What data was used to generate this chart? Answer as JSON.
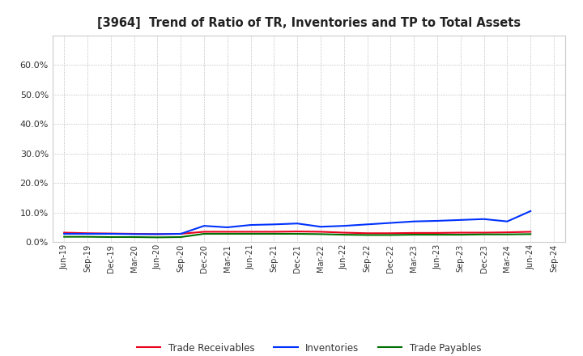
{
  "title": "[3964]  Trend of Ratio of TR, Inventories and TP to Total Assets",
  "x_labels": [
    "Jun-19",
    "Sep-19",
    "Dec-19",
    "Mar-20",
    "Jun-20",
    "Sep-20",
    "Dec-20",
    "Mar-21",
    "Jun-21",
    "Sep-21",
    "Dec-21",
    "Mar-22",
    "Jun-22",
    "Sep-22",
    "Dec-22",
    "Mar-23",
    "Jun-23",
    "Sep-23",
    "Dec-23",
    "Mar-24",
    "Jun-24",
    "Sep-24"
  ],
  "trade_receivables": [
    3.2,
    3.0,
    2.9,
    2.8,
    2.7,
    2.8,
    3.5,
    3.5,
    3.5,
    3.5,
    3.6,
    3.5,
    3.2,
    3.0,
    3.0,
    3.1,
    3.1,
    3.2,
    3.2,
    3.3,
    3.5,
    null
  ],
  "inventories": [
    2.8,
    2.8,
    2.8,
    2.7,
    2.7,
    2.8,
    5.5,
    5.0,
    5.8,
    6.0,
    6.3,
    5.2,
    5.5,
    6.0,
    6.5,
    7.0,
    7.2,
    7.5,
    7.8,
    7.0,
    10.5,
    null
  ],
  "trade_payables": [
    1.8,
    1.8,
    1.7,
    1.7,
    1.6,
    1.7,
    2.8,
    2.8,
    2.8,
    2.8,
    2.8,
    2.7,
    2.5,
    2.4,
    2.4,
    2.5,
    2.5,
    2.5,
    2.6,
    2.6,
    2.7,
    null
  ],
  "tr_color": "#e8001c",
  "inv_color": "#0032ff",
  "tp_color": "#007000",
  "ylim_pct": [
    0.0,
    70.0
  ],
  "yticks_pct": [
    0.0,
    10.0,
    20.0,
    30.0,
    40.0,
    50.0,
    60.0
  ],
  "background_color": "#ffffff",
  "grid_color": "#aaaaaa",
  "legend_labels": [
    "Trade Receivables",
    "Inventories",
    "Trade Payables"
  ]
}
